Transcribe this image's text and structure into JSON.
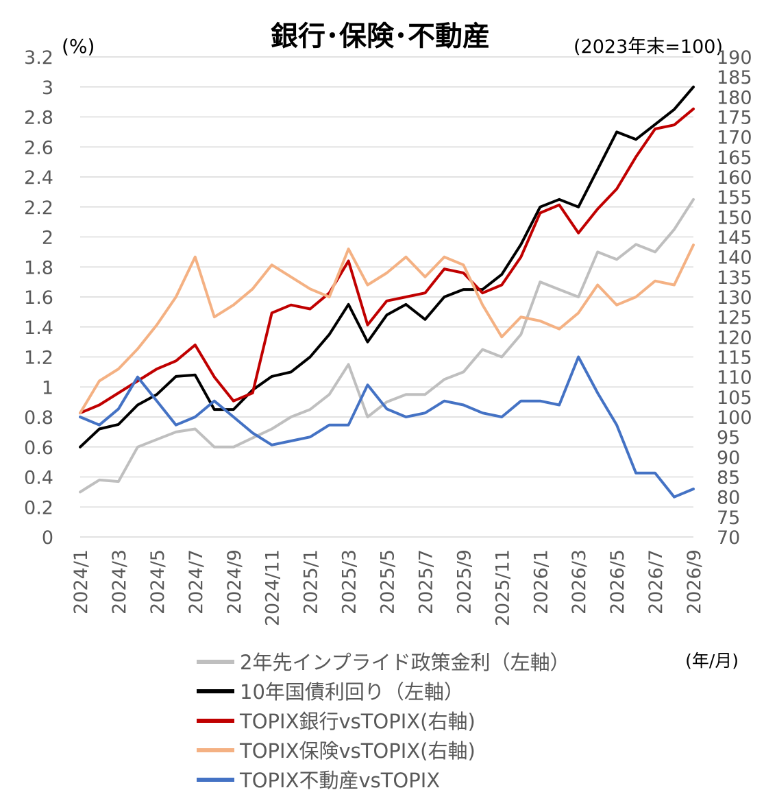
{
  "chart_data": {
    "type": "line",
    "title": "銀行･保険･不動産",
    "left_unit": "(%)",
    "right_unit": "(2023年末=100)",
    "x_unit": "(年/月)",
    "x_ticks": [
      "2024/1",
      "2024/3",
      "2024/5",
      "2024/7",
      "2024/9",
      "2024/11",
      "2025/1",
      "2025/3",
      "2025/5",
      "2025/7",
      "2025/9",
      "2025/11",
      "2026/1",
      "2026/3",
      "2026/5",
      "2026/7",
      "2026/9"
    ],
    "y_left": {
      "min": 0,
      "max": 3.2,
      "ticks": [
        "0",
        "0.2",
        "0.4",
        "0.6",
        "0.8",
        "1",
        "1.2",
        "1.4",
        "1.6",
        "1.8",
        "2",
        "2.2",
        "2.4",
        "2.6",
        "2.8",
        "3",
        "3.2"
      ]
    },
    "y_right": {
      "min": 70,
      "max": 190,
      "ticks": [
        "70",
        "75",
        "80",
        "85",
        "90",
        "95",
        "100",
        "105",
        "110",
        "115",
        "120",
        "125",
        "130",
        "135",
        "140",
        "145",
        "150",
        "155",
        "160",
        "165",
        "170",
        "175",
        "180",
        "185",
        "190"
      ]
    },
    "grid": true,
    "legend_position": "bottom",
    "series": [
      {
        "name": "2年先インプライド政策金利（左軸）",
        "axis": "left",
        "color": "#bfbfbf",
        "x": [
          "2024/1",
          "2024/2",
          "2024/3",
          "2024/4",
          "2024/5",
          "2024/6",
          "2024/7",
          "2024/8",
          "2024/9",
          "2024/10",
          "2024/11",
          "2024/12",
          "2025/1",
          "2025/2",
          "2025/3",
          "2025/4",
          "2025/5",
          "2025/6",
          "2025/7",
          "2025/8",
          "2025/9",
          "2025/10",
          "2025/11",
          "2025/12",
          "2026/1",
          "2026/2",
          "2026/3",
          "2026/4",
          "2026/5",
          "2026/6",
          "2026/7",
          "2026/8",
          "2026/9"
        ],
        "values": [
          0.3,
          0.38,
          0.37,
          0.6,
          0.65,
          0.7,
          0.72,
          0.6,
          0.6,
          0.66,
          0.72,
          0.8,
          0.85,
          0.95,
          1.15,
          0.8,
          0.9,
          0.95,
          0.95,
          1.05,
          1.1,
          1.25,
          1.2,
          1.35,
          1.7,
          1.65,
          1.6,
          1.9,
          1.85,
          1.95,
          1.9,
          2.05,
          2.25
        ]
      },
      {
        "name": "10年国債利回り（左軸）",
        "axis": "left",
        "color": "#000000",
        "x": [
          "2024/1",
          "2024/2",
          "2024/3",
          "2024/4",
          "2024/5",
          "2024/6",
          "2024/7",
          "2024/8",
          "2024/9",
          "2024/10",
          "2024/11",
          "2024/12",
          "2025/1",
          "2025/2",
          "2025/3",
          "2025/4",
          "2025/5",
          "2025/6",
          "2025/7",
          "2025/8",
          "2025/9",
          "2025/10",
          "2025/11",
          "2025/12",
          "2026/1",
          "2026/2",
          "2026/3",
          "2026/4",
          "2026/5",
          "2026/6",
          "2026/7",
          "2026/8",
          "2026/9"
        ],
        "values": [
          0.6,
          0.72,
          0.75,
          0.88,
          0.95,
          1.07,
          1.08,
          0.85,
          0.85,
          0.98,
          1.07,
          1.1,
          1.2,
          1.35,
          1.55,
          1.3,
          1.48,
          1.55,
          1.45,
          1.6,
          1.65,
          1.65,
          1.75,
          1.95,
          2.2,
          2.25,
          2.2,
          2.45,
          2.7,
          2.65,
          2.75,
          2.85,
          3.0
        ]
      },
      {
        "name": "TOPIX銀行vsTOPIX(右軸)",
        "axis": "right",
        "color": "#c00000",
        "x": [
          "2024/1",
          "2024/2",
          "2024/3",
          "2024/4",
          "2024/5",
          "2024/6",
          "2024/7",
          "2024/8",
          "2024/9",
          "2024/10",
          "2024/11",
          "2024/12",
          "2025/1",
          "2025/2",
          "2025/3",
          "2025/4",
          "2025/5",
          "2025/6",
          "2025/7",
          "2025/8",
          "2025/9",
          "2025/10",
          "2025/11",
          "2025/12",
          "2026/1",
          "2026/2",
          "2026/3",
          "2026/4",
          "2026/5",
          "2026/6",
          "2026/7",
          "2026/8",
          "2026/9"
        ],
        "values": [
          101,
          103,
          106,
          109,
          112,
          114,
          118,
          110,
          104,
          106,
          126,
          128,
          127,
          131,
          139,
          123,
          129,
          130,
          131,
          137,
          136,
          131,
          133,
          140,
          151,
          153,
          146,
          152,
          157,
          165,
          172,
          173,
          177
        ]
      },
      {
        "name": "TOPIX保険vsTOPIX(右軸)",
        "axis": "right",
        "color": "#f4b183",
        "x": [
          "2024/1",
          "2024/2",
          "2024/3",
          "2024/4",
          "2024/5",
          "2024/6",
          "2024/7",
          "2024/8",
          "2024/9",
          "2024/10",
          "2024/11",
          "2024/12",
          "2025/1",
          "2025/2",
          "2025/3",
          "2025/4",
          "2025/5",
          "2025/6",
          "2025/7",
          "2025/8",
          "2025/9",
          "2025/10",
          "2025/11",
          "2025/12",
          "2026/1",
          "2026/2",
          "2026/3",
          "2026/4",
          "2026/5",
          "2026/6",
          "2026/7",
          "2026/8",
          "2026/9"
        ],
        "values": [
          101,
          109,
          112,
          117,
          123,
          130,
          140,
          125,
          128,
          132,
          138,
          135,
          132,
          130,
          142,
          133,
          136,
          140,
          135,
          140,
          138,
          128,
          120,
          125,
          124,
          122,
          126,
          133,
          128,
          130,
          134,
          133,
          143
        ]
      },
      {
        "name": "TOPIX不動産vsTOPIX",
        "axis": "right",
        "color": "#4472c4",
        "x": [
          "2024/1",
          "2024/2",
          "2024/3",
          "2024/4",
          "2024/5",
          "2024/6",
          "2024/7",
          "2024/8",
          "2024/9",
          "2024/10",
          "2024/11",
          "2024/12",
          "2025/1",
          "2025/2",
          "2025/3",
          "2025/4",
          "2025/5",
          "2025/6",
          "2025/7",
          "2025/8",
          "2025/9",
          "2025/10",
          "2025/11",
          "2025/12",
          "2026/1",
          "2026/2",
          "2026/3",
          "2026/4",
          "2026/5",
          "2026/6",
          "2026/7",
          "2026/8",
          "2026/9"
        ],
        "values": [
          100,
          98,
          102,
          110,
          104,
          98,
          100,
          104,
          100,
          96,
          93,
          94,
          95,
          98,
          98,
          108,
          102,
          100,
          101,
          104,
          103,
          101,
          100,
          104,
          104,
          103,
          115,
          106,
          98,
          86,
          86,
          80,
          82
        ]
      }
    ]
  }
}
